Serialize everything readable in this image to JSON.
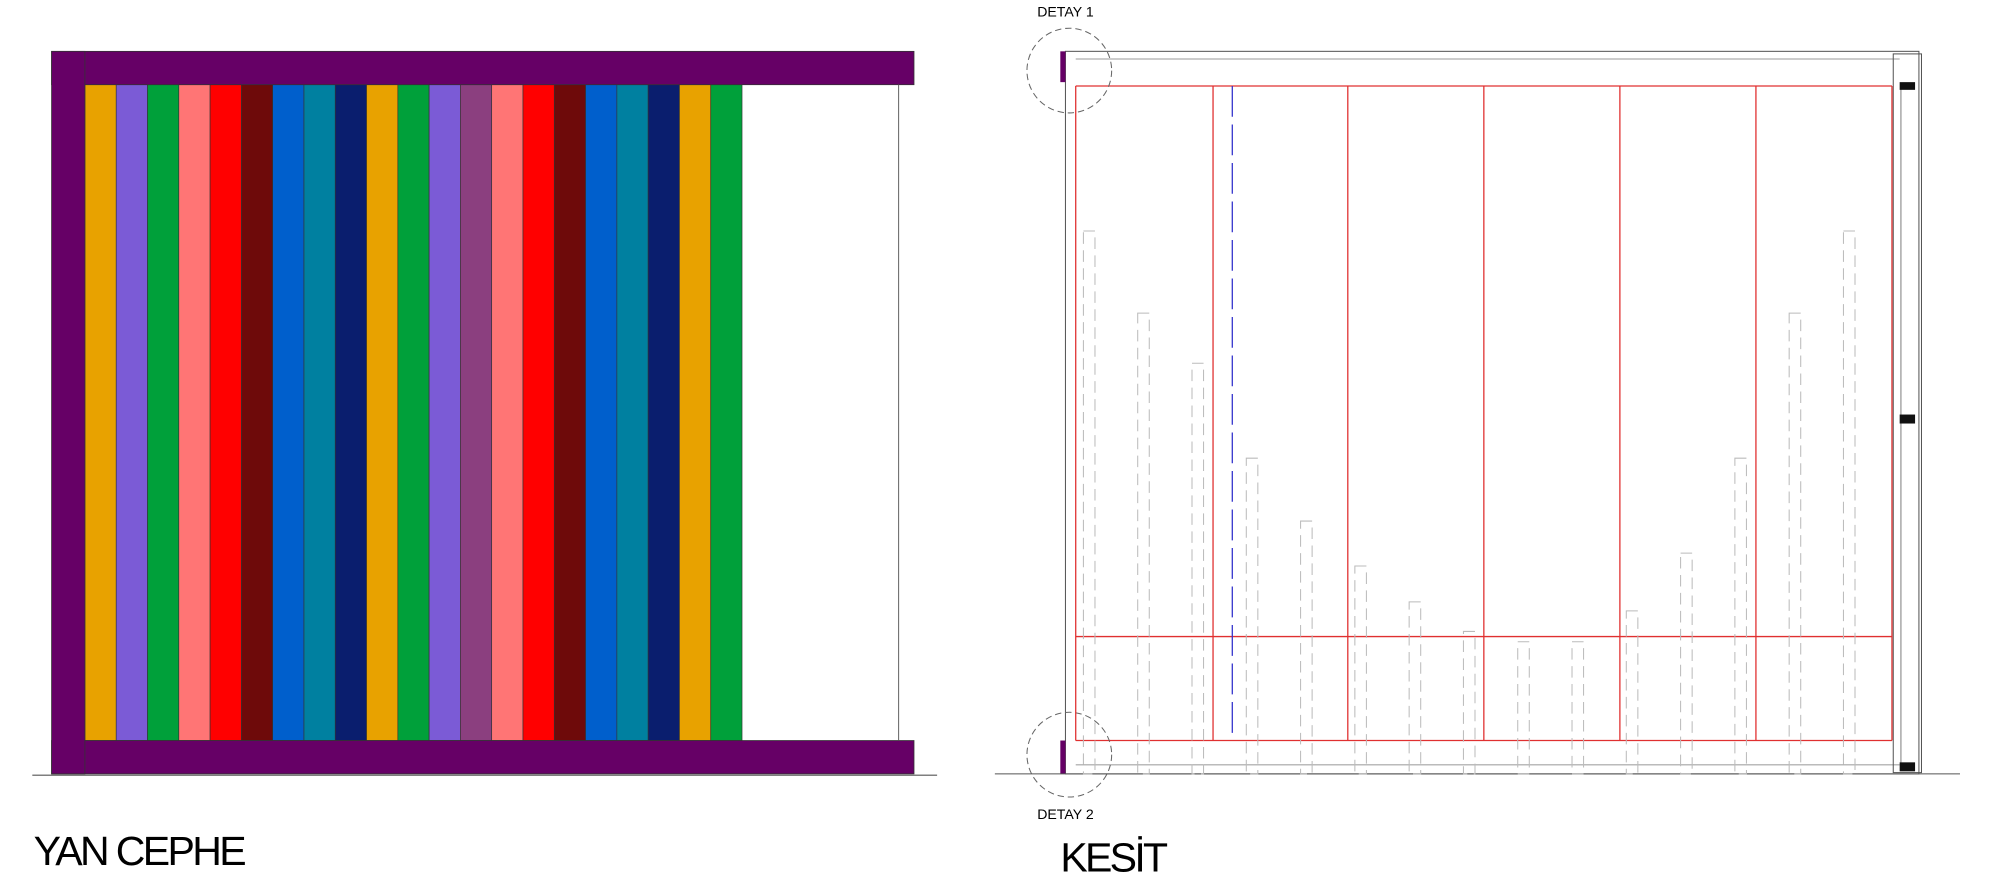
{
  "views": [
    {
      "title": "YAN CEPHE"
    },
    {
      "title": "KESİT",
      "details": [
        "DETAY 1",
        "DETAY 2"
      ]
    }
  ]
}
